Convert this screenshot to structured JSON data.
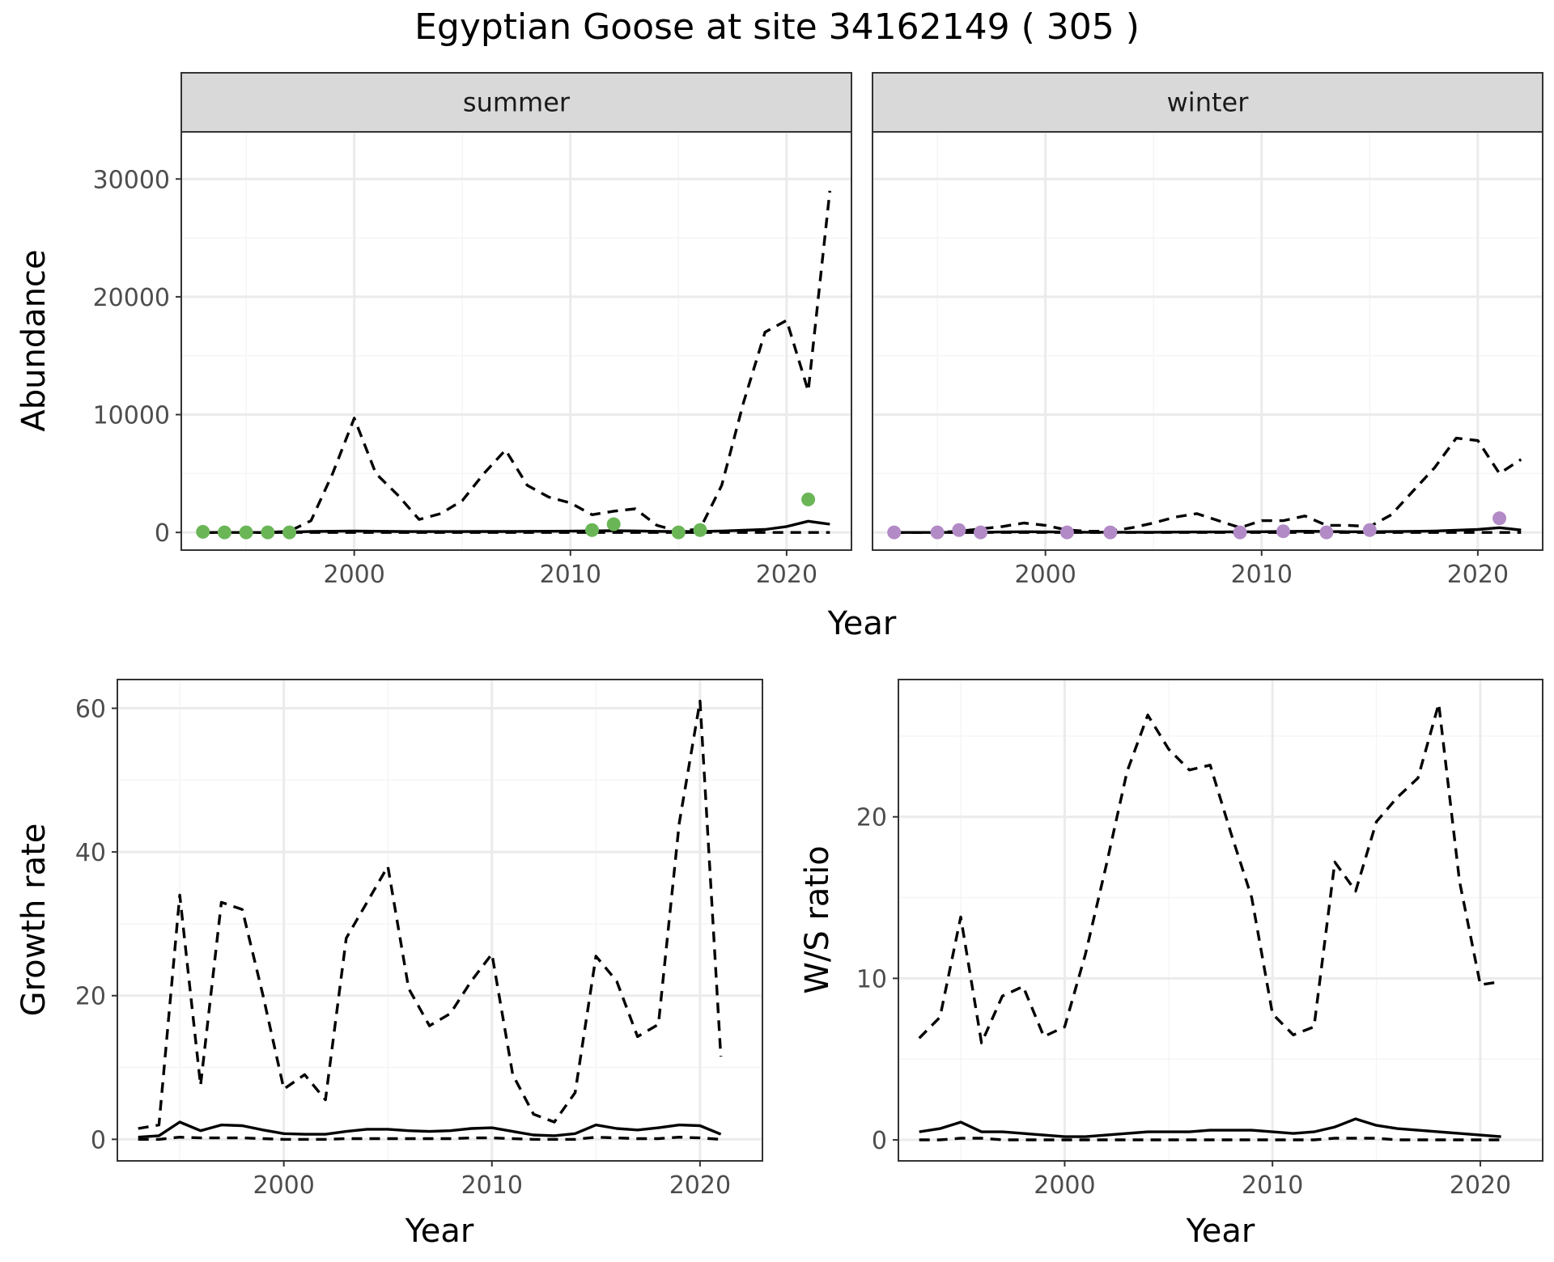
{
  "title": "Egyptian Goose at site 34162149 ( 305 )",
  "colors": {
    "summer_points": "#6ab657",
    "winter_points": "#b28bc6",
    "lines": "#000000",
    "strip_fill": "#d9d9d9",
    "grid_major": "#ebebeb",
    "grid_minor": "#f5f5f5"
  },
  "chart_data": [
    {
      "id": "abundance_summer",
      "type": "line",
      "panel_strip": "summer",
      "xlabel": "Year",
      "ylabel": "Abundance",
      "xlim": [
        1992,
        2023
      ],
      "ylim": [
        -1500,
        34000
      ],
      "x_ticks": [
        2000,
        2010,
        2020
      ],
      "y_ticks": [
        0,
        10000,
        20000,
        30000
      ],
      "grid": true,
      "points": {
        "x": [
          1993,
          1994,
          1995,
          1996,
          1997,
          2011,
          2012,
          2015,
          2016,
          2021
        ],
        "y": [
          50,
          0,
          0,
          0,
          0,
          200,
          700,
          0,
          200,
          2800
        ]
      },
      "series": [
        {
          "style": "solid",
          "x": [
            1993,
            1994,
            1995,
            1996,
            1997,
            1998,
            1999,
            2000,
            2001,
            2002,
            2003,
            2004,
            2005,
            2006,
            2007,
            2008,
            2009,
            2010,
            2011,
            2012,
            2013,
            2014,
            2015,
            2016,
            2017,
            2018,
            2019,
            2020,
            2021,
            2022
          ],
          "y": [
            0,
            0,
            0,
            0,
            30,
            80,
            100,
            120,
            100,
            80,
            70,
            70,
            70,
            80,
            80,
            90,
            100,
            110,
            130,
            150,
            130,
            90,
            70,
            80,
            120,
            180,
            250,
            500,
            950,
            700
          ]
        },
        {
          "style": "dashed",
          "x": [
            1993,
            1994,
            1995,
            1996,
            1997,
            1998,
            1999,
            2000,
            2001,
            2002,
            2003,
            2004,
            2005,
            2006,
            2007,
            2008,
            2009,
            2010,
            2011,
            2012,
            2013,
            2014,
            2015,
            2016,
            2017,
            2018,
            2019,
            2020,
            2021,
            2022
          ],
          "y": [
            0,
            0,
            0,
            0,
            100,
            1000,
            5000,
            9700,
            5000,
            3200,
            1100,
            1600,
            2700,
            5000,
            7000,
            4000,
            3000,
            2500,
            1500,
            1800,
            2000,
            600,
            100,
            300,
            4000,
            11000,
            17000,
            18000,
            12000,
            29000
          ]
        },
        {
          "style": "dashed",
          "x": [
            1993,
            1995,
            2000,
            2005,
            2010,
            2015,
            2020,
            2022
          ],
          "y": [
            0,
            0,
            0,
            0,
            0,
            0,
            0,
            0
          ]
        }
      ]
    },
    {
      "id": "abundance_winter",
      "type": "line",
      "panel_strip": "winter",
      "xlabel": "Year",
      "ylabel": "Abundance",
      "xlim": [
        1992,
        2023
      ],
      "ylim": [
        -1500,
        34000
      ],
      "x_ticks": [
        2000,
        2010,
        2020
      ],
      "y_ticks": [
        0,
        10000,
        20000,
        30000
      ],
      "grid": true,
      "points": {
        "x": [
          1993,
          1995,
          1996,
          1997,
          2001,
          2003,
          2009,
          2011,
          2013,
          2015,
          2021
        ],
        "y": [
          0,
          0,
          200,
          0,
          0,
          0,
          0,
          100,
          0,
          200,
          1200
        ]
      },
      "series": [
        {
          "style": "solid",
          "x": [
            1993,
            1994,
            1995,
            1996,
            1997,
            1998,
            1999,
            2000,
            2001,
            2002,
            2003,
            2004,
            2005,
            2006,
            2007,
            2008,
            2009,
            2010,
            2011,
            2012,
            2013,
            2014,
            2015,
            2016,
            2017,
            2018,
            2019,
            2020,
            2021,
            2022
          ],
          "y": [
            0,
            0,
            0,
            10,
            20,
            40,
            60,
            50,
            30,
            20,
            20,
            20,
            20,
            30,
            40,
            40,
            50,
            60,
            80,
            100,
            80,
            60,
            60,
            70,
            90,
            120,
            180,
            250,
            400,
            200
          ]
        },
        {
          "style": "dashed",
          "x": [
            1993,
            1994,
            1995,
            1996,
            1997,
            1998,
            1999,
            2000,
            2001,
            2002,
            2003,
            2004,
            2005,
            2006,
            2007,
            2008,
            2009,
            2010,
            2011,
            2012,
            2013,
            2014,
            2015,
            2016,
            2017,
            2018,
            2019,
            2020,
            2021,
            2022
          ],
          "y": [
            0,
            0,
            0,
            100,
            300,
            500,
            800,
            600,
            200,
            100,
            100,
            400,
            800,
            1300,
            1600,
            1000,
            400,
            1000,
            1000,
            1400,
            600,
            600,
            500,
            1500,
            3500,
            5500,
            8000,
            7800,
            5000,
            6200
          ]
        },
        {
          "style": "dashed",
          "x": [
            1993,
            1995,
            2000,
            2005,
            2010,
            2015,
            2020,
            2022
          ],
          "y": [
            0,
            0,
            0,
            0,
            0,
            0,
            0,
            0
          ]
        }
      ]
    },
    {
      "id": "growth_rate",
      "type": "line",
      "xlabel": "Year",
      "ylabel": "Growth rate",
      "xlim": [
        1992,
        2023
      ],
      "ylim": [
        -3,
        64
      ],
      "x_ticks": [
        2000,
        2010,
        2020
      ],
      "y_ticks": [
        0,
        20,
        40,
        60
      ],
      "grid": true,
      "series": [
        {
          "style": "solid",
          "x": [
            1993,
            1994,
            1995,
            1996,
            1997,
            1998,
            1999,
            2000,
            2001,
            2002,
            2003,
            2004,
            2005,
            2006,
            2007,
            2008,
            2009,
            2010,
            2011,
            2012,
            2013,
            2014,
            2015,
            2016,
            2017,
            2018,
            2019,
            2020,
            2021
          ],
          "y": [
            0.3,
            0.5,
            2.4,
            1.2,
            2.0,
            1.9,
            1.3,
            0.8,
            0.7,
            0.7,
            1.1,
            1.4,
            1.4,
            1.2,
            1.1,
            1.2,
            1.5,
            1.6,
            1.1,
            0.6,
            0.5,
            0.8,
            2.0,
            1.5,
            1.3,
            1.6,
            2.0,
            1.9,
            0.7
          ]
        },
        {
          "style": "dashed",
          "x": [
            1993,
            1994,
            1995,
            1996,
            1997,
            1998,
            1999,
            2000,
            2001,
            2002,
            2003,
            2004,
            2005,
            2006,
            2007,
            2008,
            2009,
            2010,
            2011,
            2012,
            2013,
            2014,
            2015,
            2016,
            2017,
            2018,
            2019,
            2020,
            2021
          ],
          "y": [
            1.5,
            2.0,
            34,
            7.5,
            33,
            32,
            20,
            7.0,
            9.0,
            5.5,
            28,
            33,
            38,
            21,
            15.8,
            17.5,
            22,
            25.8,
            9.0,
            3.5,
            2.4,
            6.5,
            25.5,
            22,
            14.3,
            16,
            44,
            61,
            11.5
          ]
        },
        {
          "style": "dashed",
          "x": [
            1993,
            1994,
            1995,
            1996,
            1997,
            1998,
            1999,
            2000,
            2001,
            2002,
            2003,
            2004,
            2005,
            2006,
            2007,
            2008,
            2009,
            2010,
            2011,
            2012,
            2013,
            2014,
            2015,
            2016,
            2017,
            2018,
            2019,
            2020,
            2021
          ],
          "y": [
            0,
            0,
            0.3,
            0.2,
            0.2,
            0.2,
            0.1,
            0,
            0,
            0,
            0.1,
            0.1,
            0.1,
            0.1,
            0.1,
            0.1,
            0.2,
            0.2,
            0.1,
            0,
            0,
            0,
            0.3,
            0.2,
            0.1,
            0.1,
            0.3,
            0.2,
            0
          ]
        }
      ]
    },
    {
      "id": "ws_ratio",
      "type": "line",
      "xlabel": "Year",
      "ylabel": "W/S ratio",
      "xlim": [
        1992,
        2023
      ],
      "ylim": [
        -1.3,
        28.5
      ],
      "x_ticks": [
        2000,
        2010,
        2020
      ],
      "y_ticks": [
        0,
        10,
        20
      ],
      "grid": true,
      "series": [
        {
          "style": "solid",
          "x": [
            1993,
            1994,
            1995,
            1996,
            1997,
            1998,
            1999,
            2000,
            2001,
            2002,
            2003,
            2004,
            2005,
            2006,
            2007,
            2008,
            2009,
            2010,
            2011,
            2012,
            2013,
            2014,
            2015,
            2016,
            2017,
            2018,
            2019,
            2020,
            2021
          ],
          "y": [
            0.5,
            0.7,
            1.1,
            0.5,
            0.5,
            0.4,
            0.3,
            0.2,
            0.2,
            0.3,
            0.4,
            0.5,
            0.5,
            0.5,
            0.6,
            0.6,
            0.6,
            0.5,
            0.4,
            0.5,
            0.8,
            1.3,
            0.9,
            0.7,
            0.6,
            0.5,
            0.4,
            0.3,
            0.2
          ]
        },
        {
          "style": "dashed",
          "x": [
            1993,
            1994,
            1995,
            1996,
            1997,
            1998,
            1999,
            2000,
            2001,
            2002,
            2003,
            2004,
            2005,
            2006,
            2007,
            2008,
            2009,
            2010,
            2011,
            2012,
            2013,
            2014,
            2015,
            2016,
            2017,
            2018,
            2019,
            2020,
            2021
          ],
          "y": [
            6.3,
            7.6,
            13.8,
            6.0,
            8.9,
            9.5,
            6.4,
            7.0,
            11.5,
            17.0,
            22.8,
            26.3,
            24.2,
            22.9,
            23.2,
            19.0,
            15.0,
            7.8,
            6.5,
            7.0,
            17.2,
            15.4,
            19.7,
            21.2,
            22.4,
            27.0,
            16.0,
            9.6,
            9.8
          ]
        },
        {
          "style": "dashed",
          "x": [
            1993,
            1994,
            1995,
            1996,
            1997,
            1998,
            1999,
            2000,
            2001,
            2002,
            2003,
            2004,
            2005,
            2006,
            2007,
            2008,
            2009,
            2010,
            2011,
            2012,
            2013,
            2014,
            2015,
            2016,
            2017,
            2018,
            2019,
            2020,
            2021
          ],
          "y": [
            0,
            0,
            0.1,
            0.1,
            0,
            0,
            0,
            0,
            0,
            0,
            0,
            0,
            0,
            0,
            0,
            0,
            0,
            0,
            0,
            0,
            0.1,
            0.1,
            0.1,
            0,
            0,
            0,
            0,
            0,
            0
          ]
        }
      ]
    }
  ]
}
